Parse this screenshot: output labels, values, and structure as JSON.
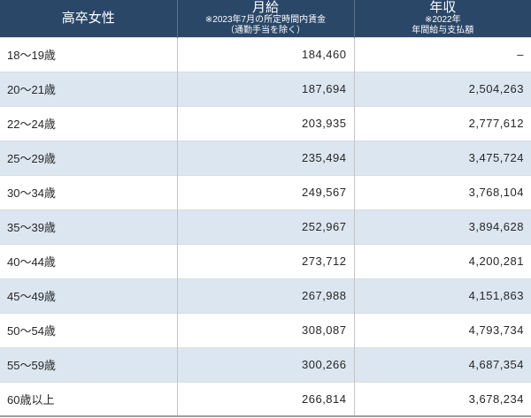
{
  "table": {
    "header": {
      "group_label": "高卒女性",
      "monthly": {
        "title": "月給",
        "note1": "※2023年7月の所定時間内賃金",
        "note2": "（通勤手当を除く）"
      },
      "annual": {
        "title": "年収",
        "note1": "※2022年",
        "note2": "年間給与支払額"
      }
    },
    "rows": [
      {
        "age": "18〜19歳",
        "monthly": "184,460",
        "annual": "–"
      },
      {
        "age": "20〜21歳",
        "monthly": "187,694",
        "annual": "2,504,263"
      },
      {
        "age": "22〜24歳",
        "monthly": "203,935",
        "annual": "2,777,612"
      },
      {
        "age": "25〜29歳",
        "monthly": "235,494",
        "annual": "3,475,724"
      },
      {
        "age": "30〜34歳",
        "monthly": "249,567",
        "annual": "3,768,104"
      },
      {
        "age": "35〜39歳",
        "monthly": "252,967",
        "annual": "3,894,628"
      },
      {
        "age": "40〜44歳",
        "monthly": "273,712",
        "annual": "4,200,281"
      },
      {
        "age": "45〜49歳",
        "monthly": "267,988",
        "annual": "4,151,863"
      },
      {
        "age": "50〜54歳",
        "monthly": "308,087",
        "annual": "4,793,734"
      },
      {
        "age": "55〜59歳",
        "monthly": "300,266",
        "annual": "4,687,354"
      },
      {
        "age": "60歳以上",
        "monthly": "266,814",
        "annual": "3,678,234"
      }
    ]
  },
  "colors": {
    "header_bg": "#2a4768",
    "header_text": "#ffffff",
    "header_divider": "#5d7089",
    "row_alt_bg": "#dce6f1",
    "grid_vertical": "#c4c4c4",
    "grid_horizontal": "#dcdcdc",
    "bottom_border": "#9e9e9e",
    "body_text": "#262626"
  },
  "chart_data": {
    "type": "table",
    "title": "高卒女性の月給・年収（年齢階級別）",
    "columns": [
      "高卒女性",
      "月給 ※2023年7月の所定時間内賃金（通勤手当を除く）",
      "年収 ※2022年 年間給与支払額"
    ],
    "rows": [
      [
        "18〜19歳",
        "184,460",
        "–"
      ],
      [
        "20〜21歳",
        "187,694",
        "2,504,263"
      ],
      [
        "22〜24歳",
        "203,935",
        "2,777,612"
      ],
      [
        "25〜29歳",
        "235,494",
        "3,475,724"
      ],
      [
        "30〜34歳",
        "249,567",
        "3,768,104"
      ],
      [
        "35〜39歳",
        "252,967",
        "3,894,628"
      ],
      [
        "40〜44歳",
        "273,712",
        "4,200,281"
      ],
      [
        "45〜49歳",
        "267,988",
        "4,151,863"
      ],
      [
        "50〜54歳",
        "308,087",
        "4,793,734"
      ],
      [
        "55〜59歳",
        "300,266",
        "4,687,354"
      ],
      [
        "60歳以上",
        "266,814",
        "3,678,234"
      ]
    ],
    "monthly_values": [
      184460,
      187694,
      203935,
      235494,
      249567,
      252967,
      273712,
      267988,
      308087,
      300266,
      266814
    ],
    "annual_values": [
      null,
      2504263,
      2777612,
      3475724,
      3768104,
      3894628,
      4200281,
      4151863,
      4793734,
      4687354,
      3678234
    ]
  }
}
